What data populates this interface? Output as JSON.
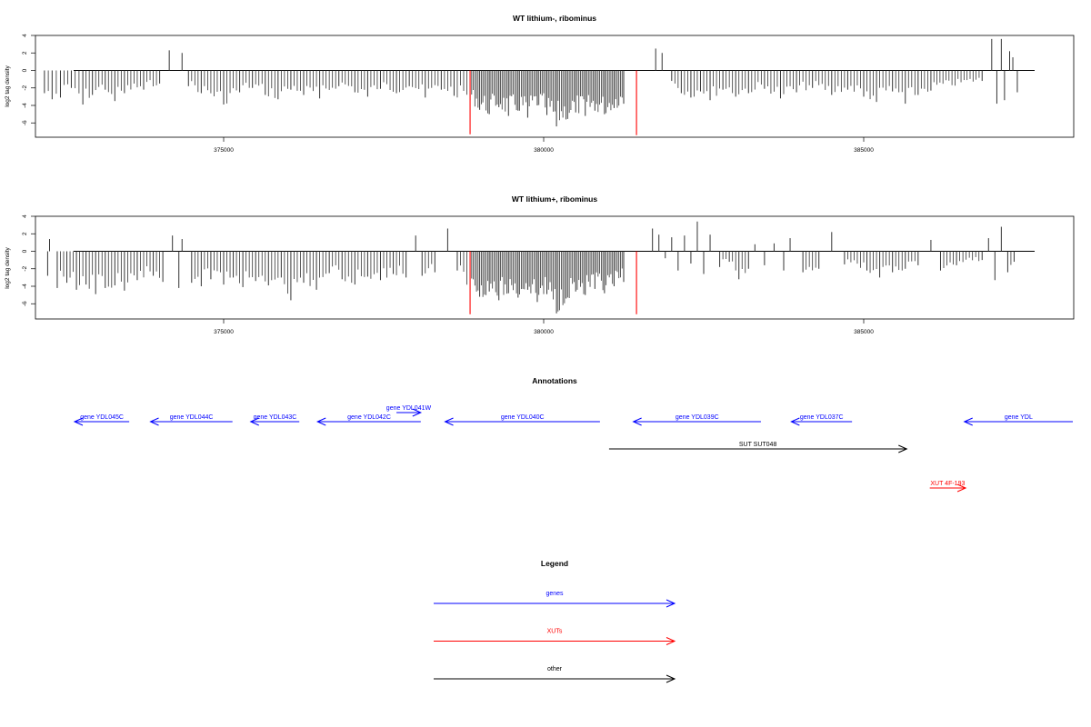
{
  "chart_data": [
    {
      "type": "bar",
      "title": "WT lithium-, ribominus",
      "ylabel": "log2 tag density",
      "xlim": [
        371000,
        387500
      ],
      "ylim": [
        -7.6,
        4
      ],
      "yticks": [
        4,
        2,
        0,
        -2,
        -4,
        -6
      ],
      "xticks": [
        375000,
        380000,
        385000
      ],
      "xtick_labels": [
        "375000",
        "380000",
        "385000"
      ],
      "grid": false,
      "colors": {
        "bars": "#333333",
        "highlight": "#ff0000",
        "axis": "#000000"
      },
      "series": [
        {
          "color": "#333333",
          "points": [
            [
              372200,
              -2.6
            ],
            [
              372320,
              -3.3
            ],
            [
              372450,
              -3.1
            ],
            [
              372620,
              -2.0
            ],
            [
              372800,
              -3.9
            ],
            [
              372950,
              -2.8
            ],
            [
              373150,
              -2.2
            ],
            [
              373300,
              -3.5
            ],
            [
              373450,
              -2.6
            ],
            [
              373750,
              -2.2
            ],
            [
              374000,
              -1.5
            ],
            [
              374150,
              2.3
            ],
            [
              374350,
              2.0
            ],
            [
              374450,
              -1.8
            ],
            [
              374650,
              -2.6
            ],
            [
              375000,
              -3.9
            ],
            [
              375250,
              -2.5
            ],
            [
              375450,
              -2.0
            ],
            [
              375650,
              -2.8
            ],
            [
              375850,
              -3.3
            ],
            [
              376050,
              -2.2
            ],
            [
              376250,
              -2.8
            ],
            [
              376500,
              -3.2
            ],
            [
              376800,
              -1.8
            ],
            [
              377050,
              -2.5
            ],
            [
              377250,
              -3.0
            ],
            [
              377450,
              -2.1
            ],
            [
              377700,
              -2.6
            ],
            [
              377900,
              -1.8
            ],
            [
              378150,
              -3.1
            ],
            [
              378400,
              -2.2
            ],
            [
              378600,
              -2.9
            ],
            [
              378850,
              -3.4
            ],
            [
              379000,
              -4.5
            ],
            [
              379150,
              -5.0
            ],
            [
              379300,
              -4.2
            ],
            [
              379450,
              -5.2
            ],
            [
              379600,
              -4.6
            ],
            [
              379750,
              -5.4
            ],
            [
              379900,
              -4.0
            ],
            [
              380050,
              -5.1
            ],
            [
              380200,
              -6.4
            ],
            [
              380350,
              -5.6
            ],
            [
              380500,
              -4.8
            ],
            [
              380650,
              -5.2
            ],
            [
              380800,
              -4.6
            ],
            [
              380950,
              -5.0
            ],
            [
              381100,
              -4.3
            ],
            [
              381250,
              -3.8
            ],
            [
              381750,
              2.5
            ],
            [
              381850,
              2.0
            ],
            [
              382000,
              -1.2
            ],
            [
              382150,
              -2.6
            ],
            [
              382300,
              -3.1
            ],
            [
              382450,
              -2.4
            ],
            [
              382600,
              -3.4
            ],
            [
              382800,
              -2.2
            ],
            [
              383000,
              -3.0
            ],
            [
              383200,
              -2.6
            ],
            [
              383450,
              -2.1
            ],
            [
              383700,
              -3.2
            ],
            [
              383950,
              -2.5
            ],
            [
              384200,
              -2.0
            ],
            [
              384500,
              -2.8
            ],
            [
              384750,
              -2.2
            ],
            [
              385000,
              -3.0
            ],
            [
              385200,
              -3.6
            ],
            [
              385450,
              -2.4
            ],
            [
              385650,
              -3.8
            ],
            [
              385850,
              -2.8
            ],
            [
              386050,
              -2.3
            ],
            [
              386850,
              -1.2
            ],
            [
              387000,
              3.6
            ],
            [
              387080,
              -3.8
            ],
            [
              387150,
              3.6
            ],
            [
              387200,
              -3.4
            ],
            [
              387280,
              2.2
            ],
            [
              387330,
              1.5
            ],
            [
              387400,
              -2.5
            ]
          ]
        },
        {
          "color": "#ff0000",
          "points": [
            [
              378850,
              -7.3
            ],
            [
              381450,
              -7.4
            ]
          ]
        }
      ]
    },
    {
      "type": "bar",
      "title": "WT lithium+, ribominus",
      "ylabel": "log2 tag density",
      "xlim": [
        371000,
        387500
      ],
      "ylim": [
        -7.6,
        4
      ],
      "yticks": [
        4,
        2,
        0,
        -2,
        -4,
        -6
      ],
      "xticks": [
        375000,
        380000,
        385000
      ],
      "xtick_labels": [
        "375000",
        "380000",
        "385000"
      ],
      "grid": false,
      "colors": {
        "bars": "#333333",
        "highlight": "#ff0000",
        "axis": "#000000"
      },
      "series": [
        {
          "color": "#333333",
          "points": [
            [
              372250,
              -2.8
            ],
            [
              372280,
              1.4
            ],
            [
              372400,
              -4.2
            ],
            [
              372550,
              -3.6
            ],
            [
              372700,
              -4.4
            ],
            [
              372850,
              -3.8
            ],
            [
              373000,
              -4.9
            ],
            [
              373150,
              -4.2
            ],
            [
              373300,
              -3.9
            ],
            [
              373450,
              -4.5
            ],
            [
              373650,
              -3.3
            ],
            [
              373900,
              -2.8
            ],
            [
              374050,
              -3.5
            ],
            [
              374200,
              1.8
            ],
            [
              374300,
              -4.2
            ],
            [
              374350,
              1.4
            ],
            [
              374500,
              -3.6
            ],
            [
              374650,
              -4.0
            ],
            [
              374800,
              -3.2
            ],
            [
              375000,
              -3.8
            ],
            [
              375150,
              -3.0
            ],
            [
              375300,
              -4.1
            ],
            [
              375500,
              -3.4
            ],
            [
              375700,
              -3.9
            ],
            [
              375900,
              -3.0
            ],
            [
              376050,
              -5.6
            ],
            [
              376250,
              -3.6
            ],
            [
              376450,
              -4.4
            ],
            [
              376650,
              -2.5
            ],
            [
              376850,
              -3.2
            ],
            [
              377050,
              -3.8
            ],
            [
              377250,
              -2.9
            ],
            [
              377450,
              -3.3
            ],
            [
              377650,
              -2.6
            ],
            [
              377850,
              -3.0
            ],
            [
              378000,
              1.8
            ],
            [
              378100,
              -2.8
            ],
            [
              378300,
              -2.4
            ],
            [
              378500,
              2.6
            ],
            [
              378650,
              -2.2
            ],
            [
              378850,
              -4.4
            ],
            [
              379000,
              -5.2
            ],
            [
              379150,
              -4.6
            ],
            [
              379300,
              -5.6
            ],
            [
              379450,
              -4.8
            ],
            [
              379600,
              -5.3
            ],
            [
              379750,
              -4.4
            ],
            [
              379900,
              -5.8
            ],
            [
              380050,
              -4.9
            ],
            [
              380200,
              -7.1
            ],
            [
              380350,
              -5.4
            ],
            [
              380500,
              -4.6
            ],
            [
              380650,
              -5.0
            ],
            [
              380800,
              -4.3
            ],
            [
              380950,
              -4.8
            ],
            [
              381100,
              -4.0
            ],
            [
              381250,
              -3.5
            ],
            [
              381700,
              2.6
            ],
            [
              381800,
              1.9
            ],
            [
              381900,
              -0.8
            ],
            [
              382000,
              1.6
            ],
            [
              382100,
              -2.2
            ],
            [
              382200,
              1.8
            ],
            [
              382300,
              -1.4
            ],
            [
              382400,
              3.4
            ],
            [
              382500,
              -2.6
            ],
            [
              382600,
              1.9
            ],
            [
              382750,
              -1.8
            ],
            [
              382900,
              -1.2
            ],
            [
              383050,
              -3.2
            ],
            [
              383200,
              -2.0
            ],
            [
              383300,
              0.8
            ],
            [
              383450,
              -1.6
            ],
            [
              383600,
              0.9
            ],
            [
              383750,
              -2.2
            ],
            [
              383850,
              1.5
            ],
            [
              384050,
              -2.4
            ],
            [
              384300,
              -2.0
            ],
            [
              384500,
              2.2
            ],
            [
              384700,
              -1.5
            ],
            [
              385050,
              -2.2
            ],
            [
              385250,
              -3.0
            ],
            [
              385450,
              -2.4
            ],
            [
              385650,
              -2.0
            ],
            [
              385850,
              -1.6
            ],
            [
              386050,
              1.3
            ],
            [
              386200,
              -2.2
            ],
            [
              386450,
              -1.6
            ],
            [
              386850,
              -1.0
            ],
            [
              386950,
              1.5
            ],
            [
              387050,
              -3.3
            ],
            [
              387150,
              2.8
            ],
            [
              387250,
              -2.4
            ],
            [
              387350,
              -1.2
            ]
          ]
        },
        {
          "color": "#ff0000",
          "points": [
            [
              378850,
              -7.2
            ],
            [
              381450,
              -7.2
            ]
          ]
        }
      ]
    }
  ],
  "annotations": {
    "title": "Annotations",
    "items": [
      {
        "label": "gene YDL045C",
        "type": "gene",
        "strand": "-",
        "start": 371050,
        "end": 371950,
        "row": 0,
        "color": "#0000ff"
      },
      {
        "label": "gene YDL044C",
        "type": "gene",
        "strand": "-",
        "start": 372300,
        "end": 373650,
        "row": 0,
        "color": "#0000ff"
      },
      {
        "label": "gene YDL043C",
        "type": "gene",
        "strand": "-",
        "start": 373950,
        "end": 374750,
        "row": 0,
        "color": "#0000ff"
      },
      {
        "label": "gene YDL042C",
        "type": "gene",
        "strand": "-",
        "start": 375050,
        "end": 376750,
        "row": 0,
        "color": "#0000ff"
      },
      {
        "label": "gene YDL041W",
        "type": "gene",
        "strand": "+",
        "start": 376350,
        "end": 376750,
        "row": -1,
        "color": "#0000ff"
      },
      {
        "label": "gene YDL040C",
        "type": "gene",
        "strand": "-",
        "start": 377150,
        "end": 379700,
        "row": 0,
        "color": "#0000ff"
      },
      {
        "label": "gene YDL039C",
        "type": "gene",
        "strand": "-",
        "start": 380250,
        "end": 382350,
        "row": 0,
        "color": "#0000ff"
      },
      {
        "label": "gene YDL037C",
        "type": "gene",
        "strand": "-",
        "start": 382850,
        "end": 383850,
        "row": 0,
        "color": "#0000ff"
      },
      {
        "label": "gene YDL",
        "type": "gene",
        "strand": "-",
        "start": 385700,
        "end": 387500,
        "row": 0,
        "color": "#0000ff"
      },
      {
        "label": "SUT SUT048",
        "type": "other",
        "strand": "+",
        "start": 379850,
        "end": 384750,
        "row": 1,
        "color": "#000000"
      },
      {
        "label": "XUT 4F-193",
        "type": "XUT",
        "strand": "+",
        "start": 385130,
        "end": 385720,
        "row": 2,
        "color": "#ff0000"
      }
    ]
  },
  "legend": {
    "title": "Legend",
    "items": [
      {
        "label": "genes",
        "color": "#0000ff"
      },
      {
        "label": "XUTs",
        "color": "#ff0000"
      },
      {
        "label": "other",
        "color": "#000000"
      }
    ]
  }
}
